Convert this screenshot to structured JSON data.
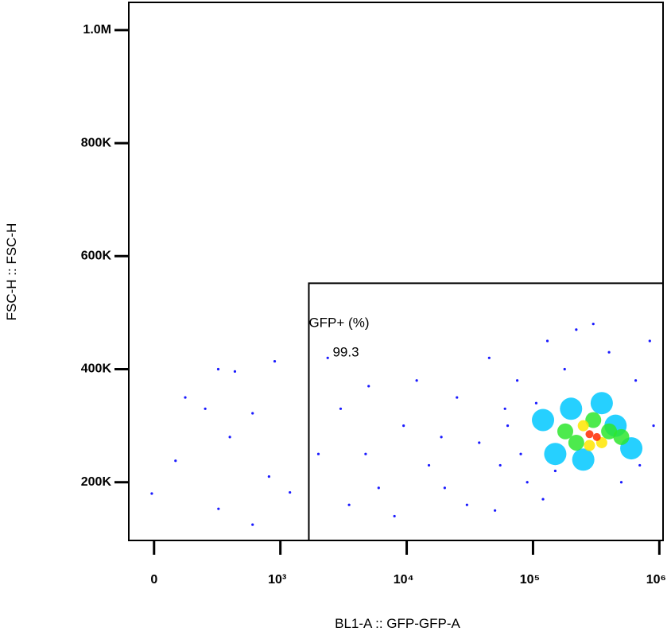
{
  "chart_data": {
    "type": "scatter",
    "x_label": "BL1-A :: GFP-GFP-A",
    "y_label": "FSC-H :: FSC-H",
    "xlim": [
      -200,
      1070000
    ],
    "ylim": [
      97000,
      1049000
    ],
    "xticks": [
      0,
      {
        "value": 1000,
        "label": "10³"
      },
      {
        "value": 10000,
        "label": "10⁴"
      },
      {
        "value": 100000,
        "label": "10⁵"
      },
      {
        "value": 1000000,
        "label": "10⁶"
      }
    ],
    "yticks": [
      {
        "value": 200000,
        "label": "200K"
      },
      {
        "value": 400000,
        "label": "400K"
      },
      {
        "value": 600000,
        "label": "600K"
      },
      {
        "value": 800000,
        "label": "800K"
      },
      {
        "value": 1000000,
        "label": "1.0M"
      }
    ],
    "gate": {
      "name": "GFP+ (%)",
      "value": 99.3,
      "x_min": 1680,
      "y_max": 552000
    },
    "series": [
      {
        "color": "#1a1aff",
        "x": [
          -18,
          170,
          247,
          405,
          508,
          640,
          600,
          780,
          955,
          910,
          510,
          1190,
          780,
          2370,
          3000,
          4730,
          6000,
          9450,
          12000,
          15000,
          18800,
          25000,
          30000,
          37500,
          45000,
          55000,
          63000,
          75000,
          90000,
          106000,
          130000,
          150000,
          178000,
          220000,
          300000,
          400000,
          500000,
          650000,
          840000,
          700000,
          3500,
          8000,
          20000,
          50000,
          120000,
          2000,
          5000,
          80000,
          60000,
          900000
        ],
        "y": [
          180000,
          238000,
          350000,
          330000,
          400000,
          396000,
          280000,
          322000,
          414000,
          210000,
          153000,
          182000,
          125000,
          420000,
          330000,
          250000,
          190000,
          300000,
          380000,
          230000,
          280000,
          350000,
          160000,
          270000,
          420000,
          230000,
          300000,
          380000,
          200000,
          340000,
          450000,
          220000,
          400000,
          470000,
          480000,
          430000,
          200000,
          380000,
          450000,
          230000,
          160000,
          140000,
          190000,
          150000,
          170000,
          250000,
          370000,
          250000,
          330000,
          300000
        ]
      },
      {
        "color": "#00c8ff",
        "x": [
          120000,
          150000,
          200000,
          450000,
          600000,
          350000,
          250000
        ],
        "y": [
          310000,
          250000,
          330000,
          300000,
          260000,
          340000,
          240000
        ]
      },
      {
        "color": "#2ee62e",
        "x": [
          180000,
          220000,
          400000,
          300000,
          500000
        ],
        "y": [
          290000,
          270000,
          290000,
          310000,
          280000
        ]
      },
      {
        "color": "#ffe600",
        "x": [
          250000,
          350000,
          280000
        ],
        "y": [
          300000,
          270000,
          265000
        ]
      },
      {
        "color": "#ff2a00",
        "x": [
          280000,
          320000
        ],
        "y": [
          285000,
          280000
        ]
      }
    ]
  }
}
